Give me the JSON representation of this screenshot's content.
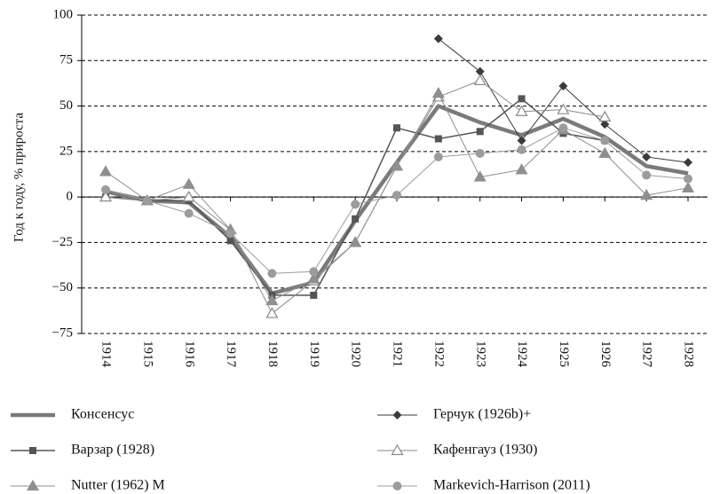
{
  "chart_data": {
    "type": "line",
    "y_label": "Год к году, % прироста",
    "categories": [
      "1914",
      "1915",
      "1916",
      "1917",
      "1918",
      "1919",
      "1920",
      "1921",
      "1922",
      "1923",
      "1924",
      "1925",
      "1926",
      "1927",
      "1928"
    ],
    "ylim": [
      -75,
      100
    ],
    "yticks": [
      {
        "value": -75,
        "label": "−75"
      },
      {
        "value": -50,
        "label": "−50"
      },
      {
        "value": -25,
        "label": "−25"
      },
      0,
      25,
      50,
      75,
      100
    ],
    "grid": true,
    "series": [
      {
        "name": "Консенсус",
        "color": "#7a7a7a",
        "marker": "none",
        "line_width": 4.5,
        "values": [
          3,
          -2,
          -3,
          -22,
          -53,
          -47,
          -13,
          19,
          50,
          41,
          34,
          43,
          33,
          17,
          13
        ]
      },
      {
        "name": "Герчук (1926b)+",
        "color": "#3a3a3a",
        "marker": "diamond",
        "line_width": 1,
        "values": [
          null,
          null,
          null,
          null,
          null,
          null,
          null,
          null,
          87,
          69,
          31,
          61,
          40,
          22,
          19
        ]
      },
      {
        "name": "Варзар (1928)",
        "color": "#555555",
        "marker": "square",
        "line_width": 1.5,
        "values": [
          0,
          -2,
          -2,
          -24,
          -54,
          -54,
          -12,
          38,
          32,
          36,
          54,
          35,
          31,
          null,
          null
        ]
      },
      {
        "name": "Кафенгауз (1930)",
        "color": "#8a8a8a",
        "marker": "triangle-open",
        "line_width": 1,
        "values": [
          0,
          -2,
          0,
          -18,
          -64,
          -46,
          -25,
          17,
          55,
          64,
          47,
          48,
          44,
          null,
          null
        ]
      },
      {
        "name": "Nutter (1962) M",
        "color": "#8f8f8f",
        "marker": "triangle",
        "line_width": 1,
        "values": [
          14,
          -2,
          7,
          -18,
          -57,
          -45,
          -25,
          17,
          57,
          11,
          15,
          37,
          24,
          1,
          5
        ]
      },
      {
        "name": "Markevich-Harrison (2011)",
        "color": "#9c9c9c",
        "marker": "circle",
        "line_width": 1,
        "values": [
          4,
          -2,
          -9,
          -20,
          -42,
          -41,
          -4,
          1,
          22,
          24,
          26,
          38,
          31,
          12,
          10
        ]
      }
    ]
  }
}
